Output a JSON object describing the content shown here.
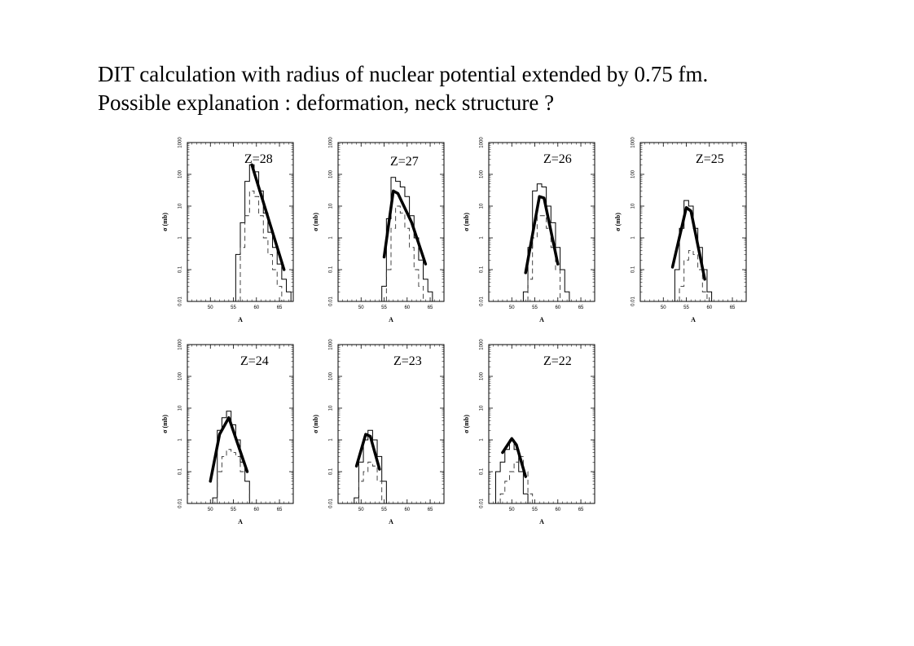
{
  "title": {
    "line1": "DIT calculation with radius of nuclear potential extended by 0.75 fm.",
    "line2": "Possible explanation : deformation, neck structure ?"
  },
  "chart_data": [
    {
      "type": "line",
      "label": "Z=28",
      "xlabel": "A",
      "ylabel": "σ (mb)",
      "xlim": [
        45,
        68
      ],
      "ylim": [
        0.01,
        1000
      ],
      "log_y": true,
      "xticks": [
        50,
        55,
        60,
        65
      ],
      "yticks": [
        0.01,
        0.1,
        1,
        10,
        100,
        1000
      ],
      "series": [
        {
          "style": "solid-histogram",
          "x": [
            56,
            57,
            58,
            59,
            60,
            61,
            62,
            63,
            64,
            65,
            66,
            67
          ],
          "values": [
            0.3,
            3,
            60,
            200,
            120,
            30,
            6,
            1.5,
            0.5,
            0.15,
            0.05,
            0.02
          ]
        },
        {
          "style": "dashed-histogram",
          "x": [
            57,
            58,
            59,
            60,
            61,
            62,
            63,
            64,
            65
          ],
          "values": [
            0.5,
            5,
            30,
            20,
            5,
            1,
            0.3,
            0.1,
            0.03
          ]
        },
        {
          "style": "thick-line",
          "x": [
            59,
            66
          ],
          "values": [
            200,
            0.1
          ]
        }
      ]
    },
    {
      "type": "line",
      "label": "Z=27",
      "xlabel": "A",
      "ylabel": "σ (mb)",
      "xlim": [
        45,
        68
      ],
      "ylim": [
        0.01,
        1000
      ],
      "log_y": true,
      "xticks": [
        50,
        55,
        60,
        65
      ],
      "yticks": [
        0.01,
        0.1,
        1,
        10,
        100,
        1000
      ],
      "series": [
        {
          "style": "solid-histogram",
          "x": [
            55,
            56,
            57,
            58,
            59,
            60,
            61,
            62,
            63,
            64,
            65
          ],
          "values": [
            0.03,
            4,
            80,
            60,
            40,
            20,
            5,
            1,
            0.2,
            0.05,
            0.02
          ]
        },
        {
          "style": "dashed-histogram",
          "x": [
            56,
            57,
            58,
            59,
            60,
            61,
            62,
            63
          ],
          "values": [
            0.1,
            2,
            10,
            6,
            2,
            0.5,
            0.1,
            0.03
          ]
        },
        {
          "style": "thick-line",
          "x": [
            55,
            57,
            58,
            61,
            64
          ],
          "values": [
            0.25,
            30,
            25,
            3,
            0.15
          ]
        }
      ]
    },
    {
      "type": "line",
      "label": "Z=26",
      "xlabel": "A",
      "ylabel": "σ (mb)",
      "xlim": [
        45,
        68
      ],
      "ylim": [
        0.01,
        1000
      ],
      "log_y": true,
      "xticks": [
        50,
        55,
        60,
        65
      ],
      "yticks": [
        0.01,
        0.1,
        1,
        10,
        100,
        1000
      ],
      "series": [
        {
          "style": "solid-histogram",
          "x": [
            53,
            54,
            55,
            56,
            57,
            58,
            59,
            60,
            61,
            62
          ],
          "values": [
            0.02,
            0.5,
            30,
            50,
            40,
            10,
            3,
            0.5,
            0.1,
            0.02
          ]
        },
        {
          "style": "dashed-histogram",
          "x": [
            54,
            55,
            56,
            57,
            58,
            59,
            60
          ],
          "values": [
            0.05,
            1,
            5,
            5,
            2,
            0.5,
            0.1
          ]
        },
        {
          "style": "thick-line",
          "x": [
            53,
            56,
            57,
            60
          ],
          "values": [
            0.08,
            20,
            18,
            0.15
          ]
        }
      ]
    },
    {
      "type": "line",
      "label": "Z=25",
      "xlabel": "A",
      "ylabel": "σ (mb)",
      "xlim": [
        45,
        68
      ],
      "ylim": [
        0.01,
        1000
      ],
      "log_y": true,
      "xticks": [
        50,
        55,
        60,
        65
      ],
      "yticks": [
        0.01,
        0.1,
        1,
        10,
        100,
        1000
      ],
      "series": [
        {
          "style": "solid-histogram",
          "x": [
            53,
            54,
            55,
            56,
            57,
            58,
            59,
            60
          ],
          "values": [
            0.1,
            2,
            15,
            10,
            2,
            0.5,
            0.1,
            0.02
          ]
        },
        {
          "style": "dashed-histogram",
          "x": [
            54,
            55,
            56,
            57,
            58,
            59
          ],
          "values": [
            0.03,
            0.2,
            0.4,
            0.3,
            0.1,
            0.02
          ]
        },
        {
          "style": "thick-line",
          "x": [
            52,
            55,
            56,
            59
          ],
          "values": [
            0.12,
            9,
            7,
            0.05
          ]
        }
      ]
    },
    {
      "type": "line",
      "label": "Z=24",
      "xlabel": "A",
      "ylabel": "σ (mb)",
      "xlim": [
        45,
        68
      ],
      "ylim": [
        0.01,
        1000
      ],
      "log_y": true,
      "xticks": [
        50,
        55,
        60,
        65
      ],
      "yticks": [
        0.01,
        0.1,
        1,
        10,
        100,
        1000
      ],
      "series": [
        {
          "style": "solid-histogram",
          "x": [
            51,
            52,
            53,
            54,
            55,
            56,
            57,
            58
          ],
          "values": [
            0.015,
            2,
            5,
            8,
            3,
            1,
            0.2,
            0.05
          ]
        },
        {
          "style": "dashed-histogram",
          "x": [
            52,
            53,
            54,
            55,
            56,
            57,
            58
          ],
          "values": [
            0.1,
            0.3,
            0.5,
            0.4,
            0.3,
            0.1,
            0.05
          ]
        },
        {
          "style": "thick-line",
          "x": [
            50,
            52,
            54,
            58
          ],
          "values": [
            0.05,
            1.5,
            5,
            0.1
          ]
        }
      ]
    },
    {
      "type": "line",
      "label": "Z=23",
      "xlabel": "A",
      "ylabel": "σ (mb)",
      "xlim": [
        45,
        68
      ],
      "ylim": [
        0.01,
        1000
      ],
      "log_y": true,
      "xticks": [
        50,
        55,
        60,
        65
      ],
      "yticks": [
        0.01,
        0.1,
        1,
        10,
        100,
        1000
      ],
      "series": [
        {
          "style": "solid-histogram",
          "x": [
            49,
            50,
            51,
            52,
            53,
            54,
            55
          ],
          "values": [
            0.015,
            0.2,
            1,
            2,
            1,
            0.3,
            0.05
          ]
        },
        {
          "style": "dashed-histogram",
          "x": [
            50,
            51,
            52,
            53,
            54
          ],
          "values": [
            0.05,
            0.1,
            0.2,
            0.15,
            0.05
          ]
        },
        {
          "style": "thick-line",
          "x": [
            49,
            51,
            52,
            54
          ],
          "values": [
            0.15,
            1.5,
            1.3,
            0.12
          ]
        }
      ]
    },
    {
      "type": "line",
      "label": "Z=22",
      "xlabel": "A",
      "ylabel": "σ (mb)",
      "xlim": [
        45,
        68
      ],
      "ylim": [
        0.01,
        1000
      ],
      "log_y": true,
      "xticks": [
        50,
        55,
        60,
        65
      ],
      "yticks": [
        0.01,
        0.1,
        1,
        10,
        100,
        1000
      ],
      "series": [
        {
          "style": "solid-histogram",
          "x": [
            47,
            48,
            49,
            50,
            51,
            52,
            53
          ],
          "values": [
            0.1,
            0.2,
            0.5,
            1,
            0.5,
            0.1,
            0.02
          ]
        },
        {
          "style": "dashed-histogram",
          "x": [
            48,
            49,
            50,
            51,
            52,
            53,
            54
          ],
          "values": [
            0.02,
            0.05,
            0.1,
            0.2,
            0.3,
            0.1,
            0.02
          ]
        },
        {
          "style": "thick-line",
          "x": [
            48,
            50,
            51,
            53
          ],
          "values": [
            0.4,
            1.1,
            0.7,
            0.07
          ]
        }
      ]
    }
  ]
}
